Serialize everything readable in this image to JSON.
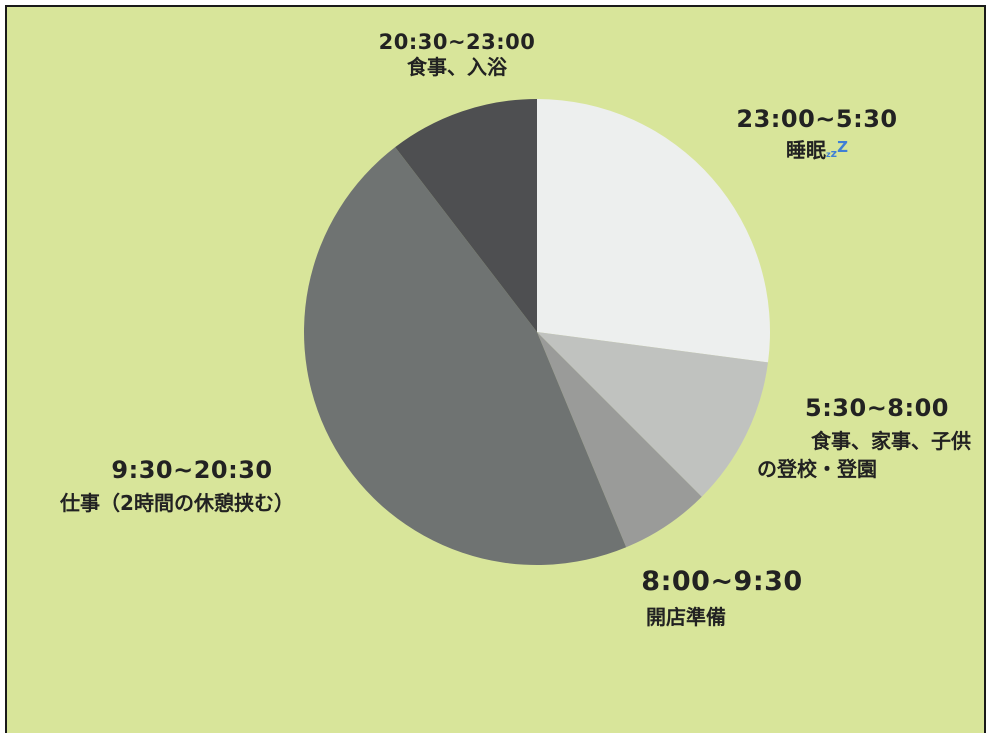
{
  "chart_data": {
    "type": "pie",
    "unit": "hours",
    "slices": [
      {
        "time": "23:00~5:30",
        "label": "睡眠",
        "value": 6.5,
        "color": "#edefee"
      },
      {
        "time": "5:30~8:00",
        "label": "食事、家事、子供の登校・登園",
        "label_line1": "食事、家事、子供",
        "label_line2": "の登校・登園",
        "value": 2.5,
        "color": "#c0c2bf"
      },
      {
        "time": "8:00~9:30",
        "label": "開店準備",
        "value": 1.5,
        "color": "#9a9b99"
      },
      {
        "time": "9:30~20:30",
        "label": "仕事（2時間の休憩挟む）",
        "value": 11,
        "color": "#6f7372"
      },
      {
        "time": "20:30~23:00",
        "label": "食事、入浴",
        "value": 2.5,
        "color": "#4e4f51"
      }
    ],
    "sleep_icon": "zzz-icon"
  }
}
